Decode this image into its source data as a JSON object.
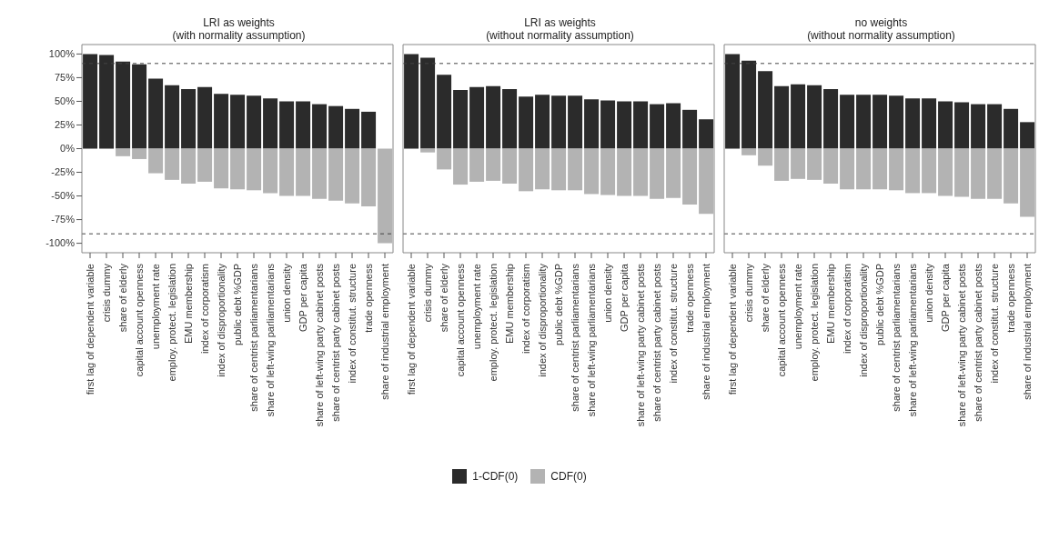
{
  "chart_data": [
    {
      "type": "bar",
      "title": "LRI as weights\n(with normality assumption)",
      "stacked": true,
      "legend": "bottom",
      "grid": false,
      "categories": [
        "first lag of dependent variable",
        "crisis dummy",
        "share of elderly",
        "capital account openness",
        "unemployment rate",
        "employ. protect. legislation",
        "EMU membership",
        "index of corporatism",
        "index of disproportionality",
        "public debt %GDP",
        "share of centrist parliamentarians",
        "share of left-wing parliamentarians",
        "union density",
        "GDP per capita",
        "share of left-wing party cabinet posts",
        "share of centrist party cabinet posts",
        "index of constitut. structure",
        "trade openness",
        "share of industrial employment"
      ],
      "series": [
        {
          "name": "1-CDF(0)",
          "color": "#2b2b2b",
          "values": [
            100,
            99,
            92,
            89,
            74,
            67,
            63,
            65,
            58,
            57,
            56,
            53,
            50,
            50,
            47,
            45,
            42,
            39,
            0
          ]
        },
        {
          "name": "CDF(0)",
          "color": "#b3b3b3",
          "values": [
            0,
            0,
            -8,
            -11,
            -26,
            -33,
            -37,
            -35,
            -42,
            -43,
            -44,
            -47,
            -50,
            -50,
            -53,
            -55,
            -58,
            -61,
            -100
          ]
        }
      ],
      "ylim": [
        -110,
        110
      ],
      "yticks": [
        {
          "value": -100,
          "label": "-100%"
        },
        {
          "value": -75,
          "label": "-75%"
        },
        {
          "value": -50,
          "label": "-50%"
        },
        {
          "value": -25,
          "label": "-25%"
        },
        {
          "value": 0,
          "label": "0%"
        },
        {
          "value": 25,
          "label": "25%"
        },
        {
          "value": 50,
          "label": "50%"
        },
        {
          "value": 75,
          "label": "75%"
        },
        {
          "value": 100,
          "label": "100%"
        }
      ],
      "ref_lines": [
        {
          "axis": "y",
          "value": 90,
          "line_style": "dashed"
        },
        {
          "axis": "y",
          "value": -90,
          "line_style": "dashed"
        }
      ]
    },
    {
      "type": "bar",
      "title": "LRI as weights\n(without normality assumption)",
      "stacked": true,
      "grid": false,
      "tick_labels": "x",
      "categories": [
        "first lag of dependent variable",
        "crisis dummy",
        "share of elderly",
        "capital account openness",
        "unemployment rate",
        "employ. protect. legislation",
        "EMU membership",
        "index of corporatism",
        "index of disproportionality",
        "public debt %GDP",
        "share of centrist parliamentarians",
        "share of left-wing parliamentarians",
        "union density",
        "GDP per capita",
        "share of left-wing party cabinet posts",
        "share of centrist party cabinet posts",
        "index of constitut. structure",
        "trade openness",
        "share of industrial employment"
      ],
      "series": [
        {
          "color": "#2b2b2b",
          "values": [
            100,
            96,
            78,
            62,
            65,
            66,
            63,
            55,
            57,
            56,
            56,
            52,
            51,
            50,
            50,
            47,
            48,
            41,
            31
          ]
        },
        {
          "color": "#b3b3b3",
          "values": [
            0,
            -4,
            -22,
            -38,
            -35,
            -34,
            -37,
            -45,
            -43,
            -44,
            -44,
            -48,
            -49,
            -50,
            -50,
            -53,
            -52,
            -59,
            -69
          ]
        }
      ],
      "ylim": [
        -110,
        110
      ],
      "ref_lines": [
        {
          "axis": "y",
          "value": 90,
          "line_style": "dashed"
        },
        {
          "axis": "y",
          "value": -90,
          "line_style": "dashed"
        }
      ]
    },
    {
      "type": "bar",
      "title": "no weights\n(without normality assumption)",
      "stacked": true,
      "grid": false,
      "tick_labels": "x",
      "categories": [
        "first lag of dependent variable",
        "crisis dummy",
        "share of elderly",
        "capital account openness",
        "unemployment rate",
        "employ. protect. legislation",
        "EMU membership",
        "index of corporatism",
        "index of disproportionality",
        "public debt %GDP",
        "share of centrist parliamentarians",
        "share of left-wing parliamentarians",
        "union density",
        "GDP per capita",
        "share of left-wing party cabinet posts",
        "share of centrist party cabinet posts",
        "index of constitut. structure",
        "trade openness",
        "share of industrial employment"
      ],
      "series": [
        {
          "color": "#2b2b2b",
          "values": [
            100,
            93,
            82,
            66,
            68,
            67,
            63,
            57,
            57,
            57,
            56,
            53,
            53,
            50,
            49,
            47,
            47,
            42,
            28
          ]
        },
        {
          "color": "#b3b3b3",
          "values": [
            0,
            -7,
            -18,
            -34,
            -32,
            -33,
            -37,
            -43,
            -43,
            -43,
            -44,
            -47,
            -47,
            -50,
            -51,
            -53,
            -53,
            -58,
            -72
          ]
        }
      ],
      "ylim": [
        -110,
        110
      ],
      "ref_lines": [
        {
          "axis": "y",
          "value": 90,
          "line_style": "dashed"
        },
        {
          "axis": "y",
          "value": -90,
          "line_style": "dashed"
        }
      ]
    }
  ]
}
